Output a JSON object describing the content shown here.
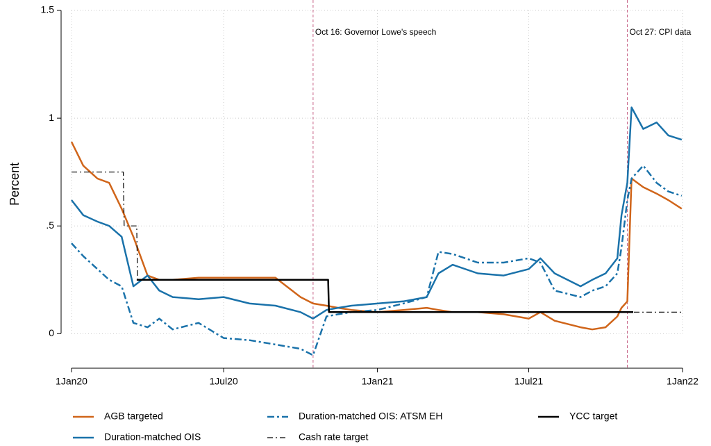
{
  "chart_data": {
    "type": "line",
    "y_label": "Percent",
    "xlim": [
      "2020-01-01",
      "2022-01-01"
    ],
    "xticks": [
      {
        "value": "2020-01-01",
        "label": "1Jan20"
      },
      {
        "value": "2020-07-01",
        "label": "1Jul20"
      },
      {
        "value": "2021-01-01",
        "label": "1Jan21"
      },
      {
        "value": "2021-07-01",
        "label": "1Jul21"
      },
      {
        "value": "2022-01-01",
        "label": "1Jan22"
      }
    ],
    "ylim": [
      -0.16,
      1.5
    ],
    "yticks": [
      0,
      {
        "value": 0.5,
        "label": ".5"
      },
      1,
      1.5
    ],
    "grid": true,
    "annotations": [
      {
        "x": "2020-10-16",
        "label": "Oct 16: Governor Lowe's speech"
      },
      {
        "x": "2021-10-27",
        "label": "Oct 27: CPI data"
      }
    ],
    "x": [
      "2020-01-01",
      "2020-01-15",
      "2020-02-01",
      "2020-02-15",
      "2020-03-01",
      "2020-03-15",
      "2020-04-01",
      "2020-04-15",
      "2020-05-01",
      "2020-06-01",
      "2020-07-01",
      "2020-08-01",
      "2020-09-01",
      "2020-10-01",
      "2020-10-16",
      "2020-11-01",
      "2020-11-15",
      "2020-12-01",
      "2021-01-01",
      "2021-02-01",
      "2021-03-01",
      "2021-03-15",
      "2021-04-01",
      "2021-05-01",
      "2021-06-01",
      "2021-07-01",
      "2021-07-15",
      "2021-08-01",
      "2021-09-01",
      "2021-09-15",
      "2021-10-01",
      "2021-10-15",
      "2021-10-20",
      "2021-10-27",
      "2021-11-01",
      "2021-11-15",
      "2021-12-01",
      "2021-12-15",
      "2021-12-31"
    ],
    "series": [
      {
        "name": "AGB targeted",
        "color": "#d0651a",
        "width": 2.5,
        "values": [
          0.89,
          0.78,
          0.72,
          0.7,
          0.58,
          0.45,
          0.27,
          0.25,
          0.25,
          0.26,
          0.26,
          0.26,
          0.26,
          0.17,
          0.14,
          0.13,
          0.12,
          0.11,
          0.1,
          0.11,
          0.12,
          0.11,
          0.1,
          0.1,
          0.09,
          0.07,
          0.1,
          0.06,
          0.03,
          0.02,
          0.03,
          0.08,
          0.12,
          0.15,
          0.72,
          0.68,
          0.65,
          0.62,
          0.58
        ]
      },
      {
        "name": "Duration-matched OIS",
        "color": "#1a72aa",
        "width": 2.5,
        "values": [
          0.62,
          0.55,
          0.52,
          0.5,
          0.45,
          0.22,
          0.27,
          0.2,
          0.17,
          0.16,
          0.17,
          0.14,
          0.13,
          0.1,
          0.07,
          0.11,
          0.12,
          0.13,
          0.14,
          0.15,
          0.17,
          0.28,
          0.32,
          0.28,
          0.27,
          0.3,
          0.35,
          0.28,
          0.22,
          0.25,
          0.28,
          0.35,
          0.55,
          0.7,
          1.05,
          0.95,
          0.98,
          0.92,
          0.9
        ]
      },
      {
        "name": "Duration-matched OIS: ATSM EH",
        "color": "#1a72aa",
        "width": 2.5,
        "dash": "10,4,3,4",
        "values": [
          0.42,
          0.36,
          0.3,
          0.25,
          0.22,
          0.05,
          0.03,
          0.07,
          0.02,
          0.05,
          -0.02,
          -0.03,
          -0.05,
          -0.07,
          -0.1,
          0.08,
          0.09,
          0.1,
          0.11,
          0.14,
          0.17,
          0.38,
          0.37,
          0.33,
          0.33,
          0.35,
          0.33,
          0.2,
          0.17,
          0.2,
          0.22,
          0.28,
          0.4,
          0.62,
          0.72,
          0.78,
          0.7,
          0.66,
          0.64
        ]
      },
      {
        "name": "Cash rate target",
        "color": "#000000",
        "width": 1.2,
        "dash": "8,4,2,4",
        "x": [
          "2020-01-01",
          "2020-03-03",
          "2020-03-04",
          "2020-03-19",
          "2020-03-20",
          "2020-11-03",
          "2020-11-04",
          "2021-12-31"
        ],
        "values": [
          0.75,
          0.75,
          0.5,
          0.5,
          0.25,
          0.25,
          0.1,
          0.1
        ]
      },
      {
        "name": "YCC target",
        "color": "#000000",
        "width": 2.5,
        "x": [
          "2020-03-19",
          "2020-11-03",
          "2020-11-04",
          "2021-11-03"
        ],
        "values": [
          0.25,
          0.25,
          0.1,
          0.1
        ]
      }
    ]
  }
}
